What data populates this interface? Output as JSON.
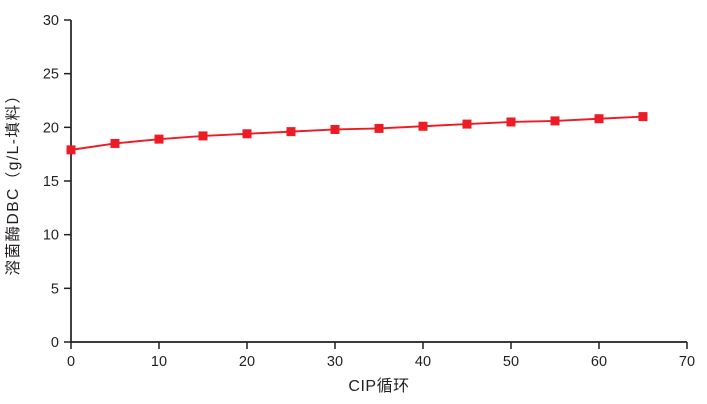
{
  "colors": {
    "series_red": "#ED1C24",
    "axis": "#231F20",
    "background": "#FFFFFF"
  },
  "chart_data": {
    "type": "line",
    "title": "",
    "xlabel": "CIP循环",
    "ylabel": "溶菌酶DBC（g/L-填料）",
    "x": [
      0,
      5,
      10,
      15,
      20,
      25,
      30,
      35,
      40,
      45,
      50,
      55,
      60,
      65
    ],
    "series": [
      {
        "name": "溶菌酶DBC",
        "marker": "square",
        "color": "#ED1C24",
        "values": [
          17.9,
          18.5,
          18.9,
          19.2,
          19.4,
          19.6,
          19.8,
          19.9,
          20.1,
          20.3,
          20.5,
          20.6,
          20.8,
          21.0
        ]
      }
    ],
    "xlim": [
      0,
      70
    ],
    "ylim": [
      0,
      30
    ],
    "xticks": [
      0,
      10,
      20,
      30,
      40,
      50,
      60,
      70
    ],
    "yticks": [
      0,
      5,
      10,
      15,
      20,
      25,
      30
    ],
    "grid": false,
    "legend": "none"
  }
}
